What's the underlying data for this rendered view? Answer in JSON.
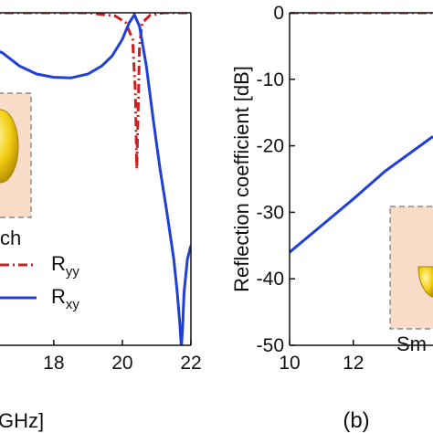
{
  "colors": {
    "ryy": "#cc1f1f",
    "rxy": "#1f3fd6",
    "inset_fill": "#f9dcc8",
    "inset_border": "#777777",
    "gold": "#f2cc10",
    "gold_edge": "#a88400"
  },
  "chart_data": [
    {
      "type": "line",
      "panel": "left",
      "xlim": [
        15.5,
        22
      ],
      "ylim": [
        -50,
        0
      ],
      "xticks": [
        "18",
        "20",
        "22"
      ],
      "xlabel_fragment": "GHz]",
      "series": [
        {
          "name": "R_yy",
          "label_main": "R",
          "label_sub": "yy",
          "style": "dash-dot",
          "x": [
            15.5,
            19.0,
            19.8,
            20.1,
            20.3,
            20.38,
            20.42,
            20.46,
            20.5,
            20.58,
            20.8,
            21.2,
            22.0
          ],
          "y": [
            0,
            0,
            -0.5,
            -1.5,
            -4.0,
            -12.0,
            -23.5,
            -15.0,
            -5.0,
            -1.5,
            -0.4,
            0,
            0
          ]
        },
        {
          "name": "R_xy",
          "label_main": "R",
          "label_sub": "xy",
          "style": "solid",
          "x": [
            15.5,
            16.5,
            17.0,
            17.5,
            18.0,
            18.5,
            19.0,
            19.4,
            19.7,
            20.0,
            20.2,
            20.35,
            20.5,
            20.7,
            20.9,
            21.1,
            21.3,
            21.5,
            21.6,
            21.68,
            21.72,
            21.76,
            21.8,
            21.9,
            22.0
          ],
          "y": [
            -4.0,
            -6.0,
            -8.0,
            -9.2,
            -9.7,
            -9.8,
            -9.2,
            -8.0,
            -6.5,
            -4.0,
            -1.5,
            -0.3,
            -2.0,
            -8.0,
            -16.0,
            -23.5,
            -30.0,
            -37.0,
            -42.0,
            -47.0,
            -50.5,
            -47.0,
            -42.0,
            -37.0,
            -35.0
          ]
        }
      ],
      "annotations": [
        "ch"
      ]
    },
    {
      "type": "line",
      "panel": "right",
      "xlim": [
        10,
        14.5
      ],
      "ylim": [
        -50,
        0
      ],
      "xticks": [
        "10",
        "12"
      ],
      "yticks": [
        "0",
        "-10",
        "-20",
        "-30",
        "-40",
        "-50"
      ],
      "ylabel": "Reflection coefficient [dB]",
      "series": [
        {
          "name": "red",
          "style": "dash-dot",
          "x": [
            10,
            14.5
          ],
          "y": [
            0,
            0
          ]
        },
        {
          "name": "blue",
          "style": "solid",
          "x": [
            10,
            11,
            12,
            13,
            14.5
          ],
          "y": [
            -36,
            -32,
            -28,
            -23.8,
            -18.6
          ]
        }
      ],
      "annotations": [
        "Sm"
      ],
      "panel_label": "(b)"
    }
  ]
}
